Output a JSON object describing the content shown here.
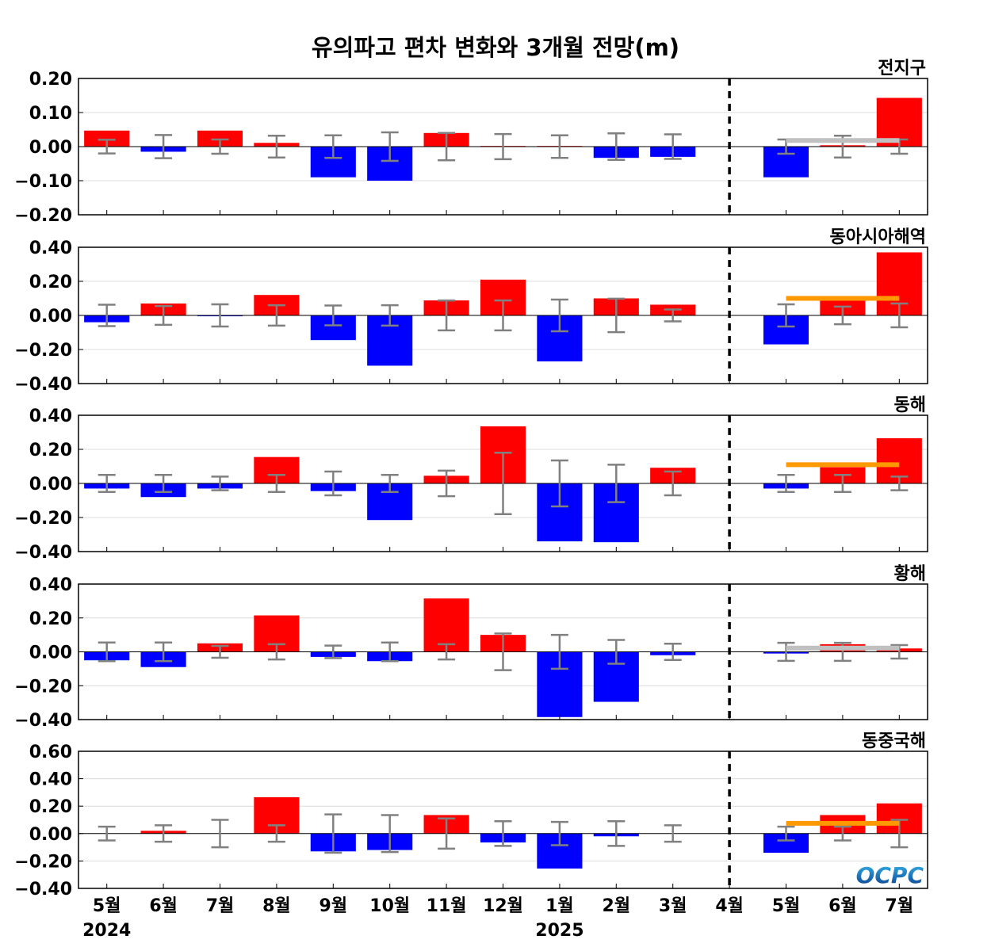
{
  "title": "유의파고 편차 변화와 3개월 전망(m)",
  "chart_data": {
    "type": "bar",
    "categories": [
      "5월",
      "6월",
      "7월",
      "8월",
      "9월",
      "10월",
      "11월",
      "12월",
      "1월",
      "2월",
      "3월",
      "4월",
      "5월",
      "6월",
      "7월"
    ],
    "year_labels": [
      {
        "text": "2024",
        "at_category": 0
      },
      {
        "text": "2025",
        "at_category": 8
      }
    ],
    "forecast_divider_at": "4월",
    "colors": {
      "positive": "#ff0000",
      "negative": "#0000ff",
      "errorbar": "#808080",
      "forecast_line": "#ff9900",
      "forecast_line_gray": "#c0c0c0"
    },
    "panels": [
      {
        "name": "전지구",
        "ylim": [
          -0.2,
          0.2
        ],
        "yticks": [
          "0.20",
          "0.10",
          "0.00",
          "−0.10",
          "−0.20"
        ],
        "ytick_values": [
          0.2,
          0.1,
          0.0,
          -0.1,
          -0.2
        ],
        "values": [
          0.047,
          -0.015,
          0.047,
          0.011,
          -0.09,
          -0.1,
          0.04,
          0.002,
          0.002,
          -0.033,
          -0.03,
          0.0,
          -0.09,
          0.004,
          0.143
        ],
        "error": [
          0.02,
          0.034,
          0.021,
          0.032,
          0.033,
          0.042,
          0.04,
          0.037,
          0.033,
          0.039,
          0.036,
          0.0,
          0.021,
          0.032,
          0.021
        ],
        "forecast_line": {
          "value": 0.018,
          "from": "5월",
          "to": "7월",
          "color": "gray"
        }
      },
      {
        "name": "동아시아해역",
        "ylim": [
          -0.4,
          0.4
        ],
        "yticks": [
          "0.40",
          "0.20",
          "0.00",
          "−0.20",
          "−0.40"
        ],
        "ytick_values": [
          0.4,
          0.2,
          0.0,
          -0.2,
          -0.4
        ],
        "values": [
          -0.04,
          0.07,
          -0.005,
          0.12,
          -0.145,
          -0.295,
          0.088,
          0.21,
          -0.27,
          0.1,
          0.063,
          0.0,
          -0.17,
          0.09,
          0.37
        ],
        "error": [
          0.063,
          0.055,
          0.065,
          0.06,
          0.058,
          0.06,
          0.088,
          0.088,
          0.093,
          0.098,
          0.035,
          0.0,
          0.065,
          0.052,
          0.07
        ],
        "forecast_line": {
          "value": 0.1,
          "from": "5월",
          "to": "7월",
          "color": "orange"
        }
      },
      {
        "name": "동해",
        "ylim": [
          -0.4,
          0.4
        ],
        "yticks": [
          "0.40",
          "0.20",
          "0.00",
          "−0.20",
          "−0.40"
        ],
        "ytick_values": [
          0.4,
          0.2,
          0.0,
          -0.2,
          -0.4
        ],
        "values": [
          -0.03,
          -0.08,
          -0.03,
          0.155,
          -0.045,
          -0.215,
          0.045,
          0.335,
          -0.34,
          -0.345,
          0.092,
          0.0,
          -0.03,
          0.095,
          0.265
        ],
        "error": [
          0.05,
          0.05,
          0.04,
          0.05,
          0.07,
          0.05,
          0.075,
          0.18,
          0.135,
          0.11,
          0.07,
          0.0,
          0.05,
          0.05,
          0.04
        ],
        "forecast_line": {
          "value": 0.11,
          "from": "5월",
          "to": "7월",
          "color": "orange"
        }
      },
      {
        "name": "황해",
        "ylim": [
          -0.4,
          0.4
        ],
        "yticks": [
          "0.40",
          "0.20",
          "0.00",
          "−0.20",
          "−0.40"
        ],
        "ytick_values": [
          0.4,
          0.2,
          0.0,
          -0.2,
          -0.4
        ],
        "values": [
          -0.05,
          -0.09,
          0.05,
          0.215,
          -0.03,
          -0.055,
          0.315,
          0.1,
          -0.385,
          -0.295,
          -0.02,
          0.0,
          -0.01,
          0.045,
          0.02
        ],
        "error": [
          0.055,
          0.055,
          0.035,
          0.045,
          0.037,
          0.055,
          0.045,
          0.108,
          0.1,
          0.07,
          0.048,
          0.0,
          0.053,
          0.053,
          0.04
        ],
        "forecast_line": {
          "value": 0.022,
          "from": "5월",
          "to": "7월",
          "color": "gray"
        }
      },
      {
        "name": "동중국해",
        "ylim": [
          -0.4,
          0.6
        ],
        "yticks": [
          "0.60",
          "0.40",
          "0.20",
          "0.00",
          "−0.20",
          "−0.40"
        ],
        "ytick_values": [
          0.6,
          0.4,
          0.2,
          0.0,
          -0.2,
          -0.4
        ],
        "values": [
          0.0,
          0.02,
          0.0,
          0.265,
          -0.13,
          -0.12,
          0.135,
          -0.065,
          -0.255,
          -0.02,
          0.0,
          0.0,
          -0.14,
          0.135,
          0.22
        ],
        "error": [
          0.05,
          0.06,
          0.1,
          0.06,
          0.14,
          0.135,
          0.11,
          0.09,
          0.085,
          0.09,
          0.06,
          0.0,
          0.05,
          0.05,
          0.1
        ],
        "forecast_line": {
          "value": 0.075,
          "from": "5월",
          "to": "7월",
          "color": "orange"
        }
      }
    ]
  },
  "logo": {
    "text": "OCPC",
    "color_top": "#2aa8e0",
    "color_bottom": "#0a3a8c"
  }
}
